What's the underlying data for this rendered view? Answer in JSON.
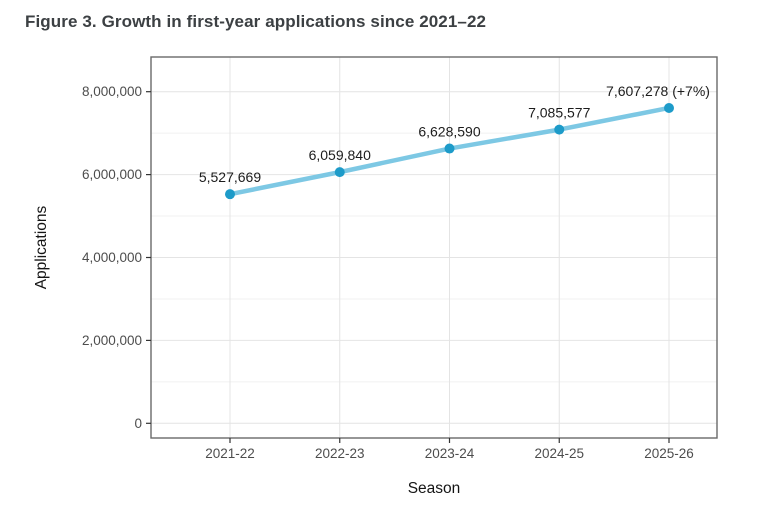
{
  "page": {
    "title": "Figure 3. Growth in first-year applications since 2021–22"
  },
  "chart_data": {
    "type": "line",
    "categories": [
      "2021-22",
      "2022-23",
      "2023-24",
      "2024-25",
      "2025-26"
    ],
    "values": [
      5527669,
      6059840,
      6628590,
      7085577,
      7607278
    ],
    "point_labels": [
      "5,527,669",
      "6,059,840",
      "6,628,590",
      "7,085,577",
      "7,607,278 (+7%)"
    ],
    "title": "Figure 3. Growth in first-year applications since 2021–22",
    "xlabel": "Season",
    "ylabel": "Applications",
    "ylim": [
      0,
      8000000
    ],
    "yticks": [
      0,
      2000000,
      4000000,
      6000000,
      8000000
    ],
    "ytick_labels": [
      "0",
      "2,000,000",
      "4,000,000",
      "6,000,000",
      "8,000,000"
    ],
    "grid": "horizontal major+minor, vertical major",
    "legend": "none",
    "colors": {
      "line": "#7dc8e4",
      "point": "#1d9bc9",
      "grid_major": "#e4e4e4",
      "grid_minor": "#f1f1f1",
      "panel_border": "#6a6a6a",
      "tick": "#333333",
      "tick_label": "#4d4d4d",
      "axis_title": "#141414",
      "data_label": "#1c1c1c",
      "title": "#3c4043"
    }
  }
}
